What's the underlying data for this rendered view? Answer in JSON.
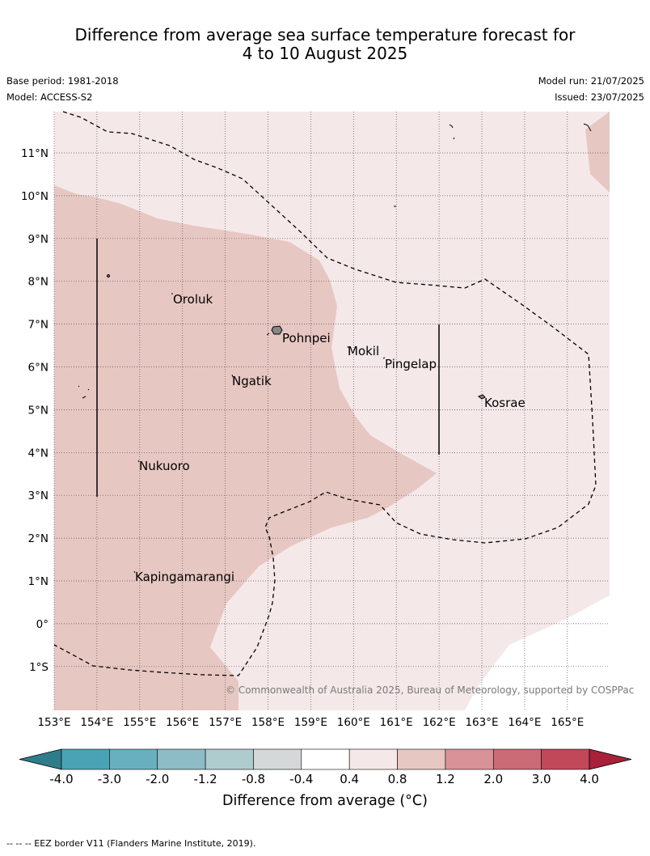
{
  "title_line1": "Difference from average sea surface temperature forecast for",
  "title_line2": "4 to 10 August 2025",
  "base_period": "Base period: 1981-2018",
  "model": "Model: ACCESS-S2",
  "model_run": "Model run: 21/07/2025",
  "issued": "Issued: 23/07/2025",
  "copyright": "© Commonwealth of Australia 2025, Bureau of Meteorology, supported by COSPPac",
  "lon_labels": [
    "153°E",
    "154°E",
    "155°E",
    "156°E",
    "157°E",
    "158°E",
    "159°E",
    "160°E",
    "161°E",
    "162°E",
    "163°E",
    "164°E",
    "165°E"
  ],
  "lat_labels": [
    "11°N",
    "10°N",
    "9°N",
    "8°N",
    "7°N",
    "6°N",
    "5°N",
    "4°N",
    "3°N",
    "2°N",
    "1°N",
    "0°",
    "1°S"
  ],
  "places": {
    "oroluk": "Oroluk",
    "pohnpei": "Pohnpei",
    "mokil": "Mokil",
    "pingelap": "Pingelap",
    "ngatik": "Ngatik",
    "kosrae": "Kosrae",
    "nukuoro": "Nukuoro",
    "kapingamarangi": "Kapingamarangi"
  },
  "colorbar": {
    "ticks": [
      "-4.0",
      "-3.0",
      "-2.0",
      "-1.2",
      "-0.8",
      "-0.4",
      "0.4",
      "0.8",
      "1.2",
      "2.0",
      "3.0",
      "4.0"
    ],
    "colors": [
      "#4aa3b5",
      "#69b0bf",
      "#8dbbc6",
      "#aecbce",
      "#d4d8d8",
      "#ffffff",
      "#f5e8e8",
      "#e7c7c2",
      "#d89398",
      "#ca6b76",
      "#c14858"
    ],
    "under_color": "#2f7d8a",
    "over_color": "#a8213a",
    "label": "Difference from average (°C)"
  },
  "map_fill": {
    "band_0_4_0_8": "#f5e8e8",
    "band_0_8_1_2": "#e7c7c2",
    "band_neutral": "#ffffff"
  },
  "footnote": "-- -- -- EEZ border V11 (Flanders Marine Institute, 2019)."
}
